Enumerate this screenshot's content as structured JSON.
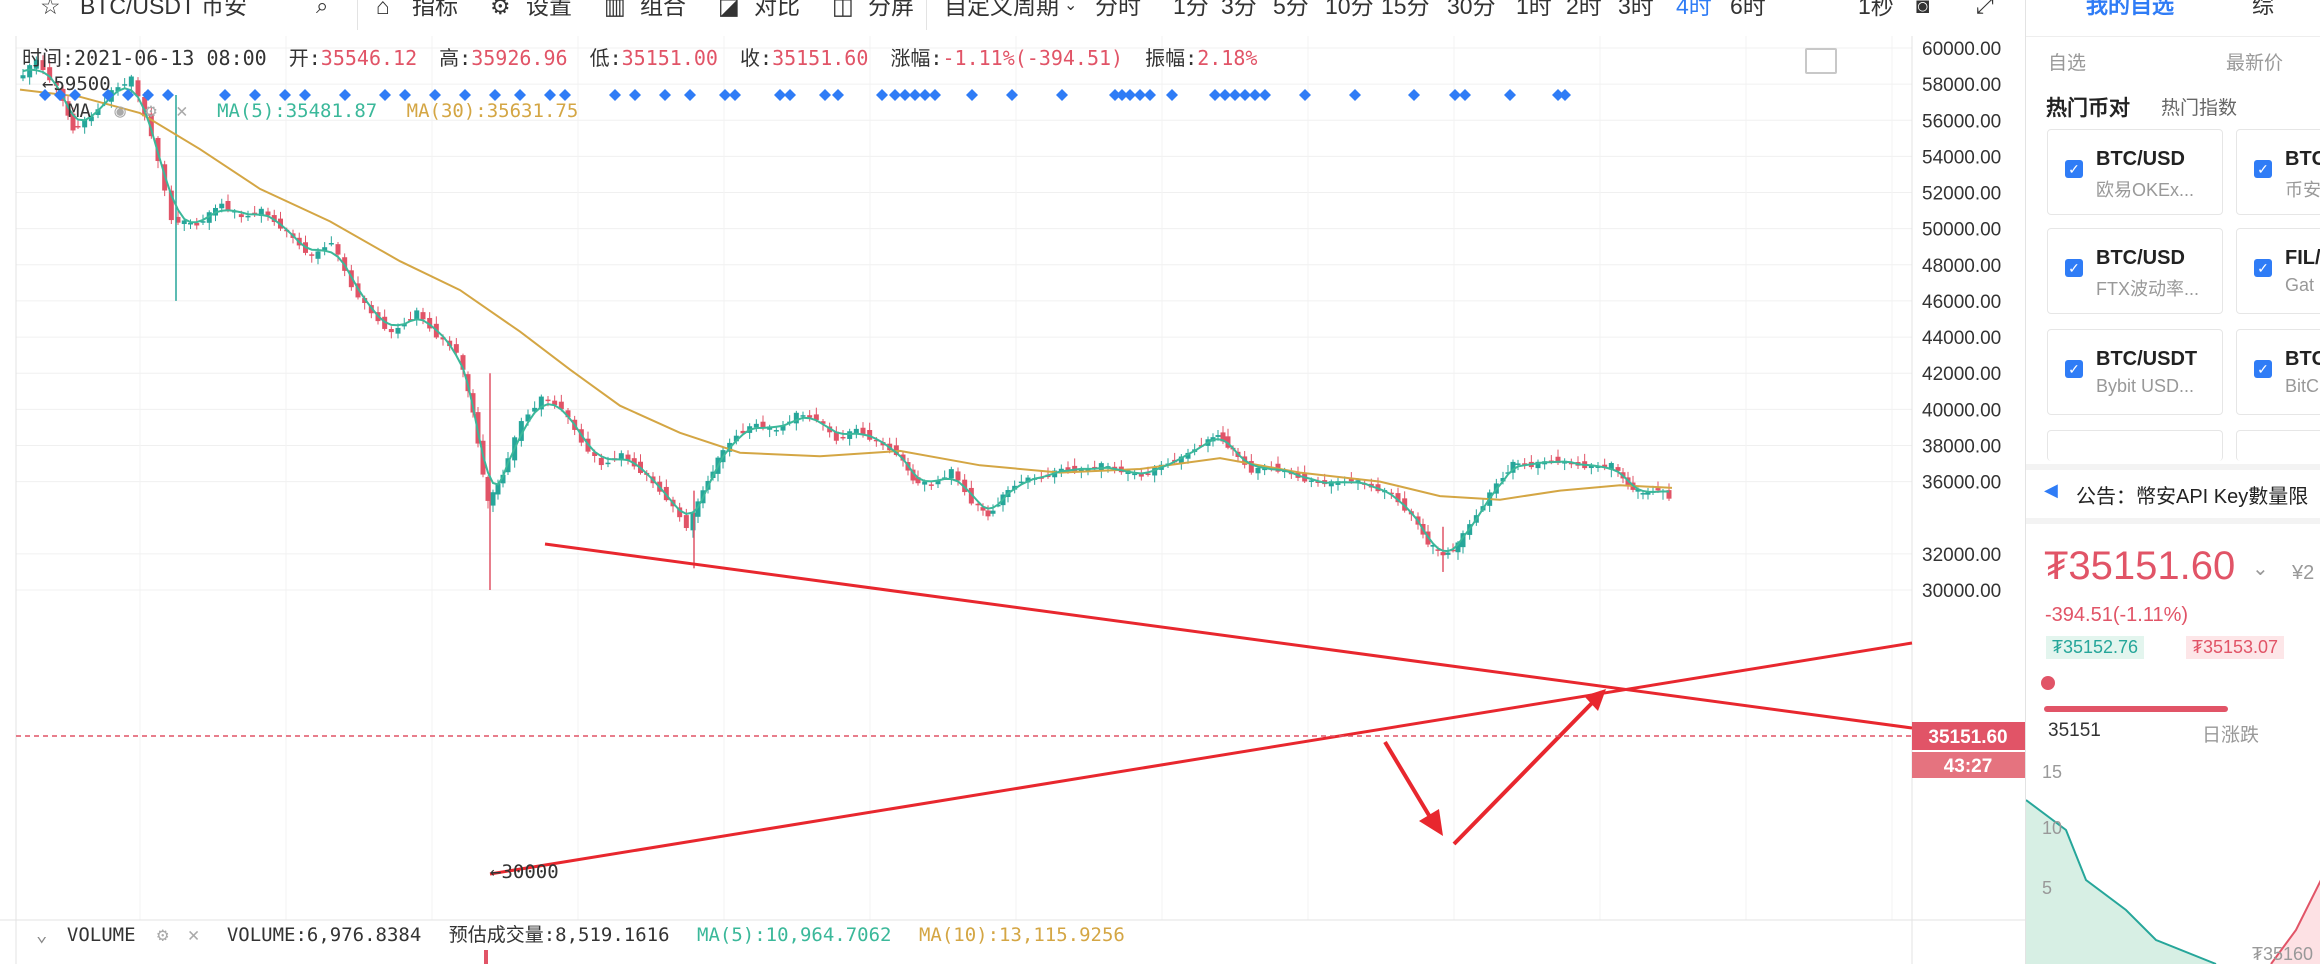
{
  "toolbar": {
    "symbol": "BTC/USDT 币安",
    "indicators": "指标",
    "settings": "设置",
    "combo": "组合",
    "compare": "对比",
    "split": "分屏",
    "custom_period": "自定义周期",
    "periods": [
      "分时",
      "1分",
      "3分",
      "5分",
      "10分",
      "15分",
      "30分",
      "1时",
      "2时",
      "3时",
      "4时",
      "6时"
    ],
    "active_period": "4时",
    "second": "1秒"
  },
  "info": {
    "time_label": "时间:",
    "time": "2021-06-13 08:00",
    "open_label": "开:",
    "open": "35546.12",
    "high_label": "高:",
    "high": "35926.96",
    "low_label": "低:",
    "low": "35151.00",
    "close_label": "收:",
    "close": "35151.60",
    "change_label": "涨幅:",
    "change": "-1.11%(-394.51)",
    "amp_label": "振幅:",
    "amp": "2.18%"
  },
  "ma_legend": {
    "name": "MA",
    "ma5": "MA(5):35481.87",
    "ma30": "MA(30):35631.75"
  },
  "markers": {
    "high": "59500",
    "low": "30000"
  },
  "price_axis": {
    "labels": [
      "60000.00",
      "58000.00",
      "56000.00",
      "54000.00",
      "52000.00",
      "50000.00",
      "48000.00",
      "46000.00",
      "44000.00",
      "42000.00",
      "40000.00",
      "38000.00",
      "36000.00",
      "32000.00",
      "30000.00"
    ],
    "current_price": "35151.60",
    "countdown": "43:27"
  },
  "volume": {
    "name": "VOLUME",
    "value": "VOLUME:6,976.8384",
    "estimate": "预估成交量:8,519.1616",
    "ma5": "MA(5):10,964.7062",
    "ma10": "MA(10):13,115.9256"
  },
  "sidebar": {
    "tab": "我的自选",
    "tab2": "综",
    "sub_left": "自选",
    "sub_right": "最新价",
    "hot_coins": "热门币对",
    "hot_index": "热门指数",
    "cards": [
      {
        "name": "BTC/USD",
        "sub": "欧易OKEx..."
      },
      {
        "name": "BTC",
        "sub": "币安"
      },
      {
        "name": "BTC/USD",
        "sub": "FTX波动率..."
      },
      {
        "name": "FIL/",
        "sub": "Gat"
      },
      {
        "name": "BTC/USDT",
        "sub": "Bybit USD..."
      },
      {
        "name": "BTC",
        "sub": "BitC"
      }
    ],
    "announce_label": "公告：",
    "announce_text": "幣安API Key數量限",
    "price": "₮35151.60",
    "price_cny": "¥2",
    "change": "-394.51(-1.11%)",
    "bid": "₮35152.76",
    "ask": "₮35153.07",
    "low_val": "35151",
    "daily_change": "日涨跌",
    "mini_15": "15",
    "mini_10": "10",
    "mini_5": "5",
    "mini_price": "₮35160"
  },
  "colors": {
    "up": "#26a69a",
    "down": "#e15467",
    "accent": "#2f7cf6",
    "ma5": "#3bb89a",
    "ma30": "#d4a644",
    "trend": "#e8272e"
  }
}
